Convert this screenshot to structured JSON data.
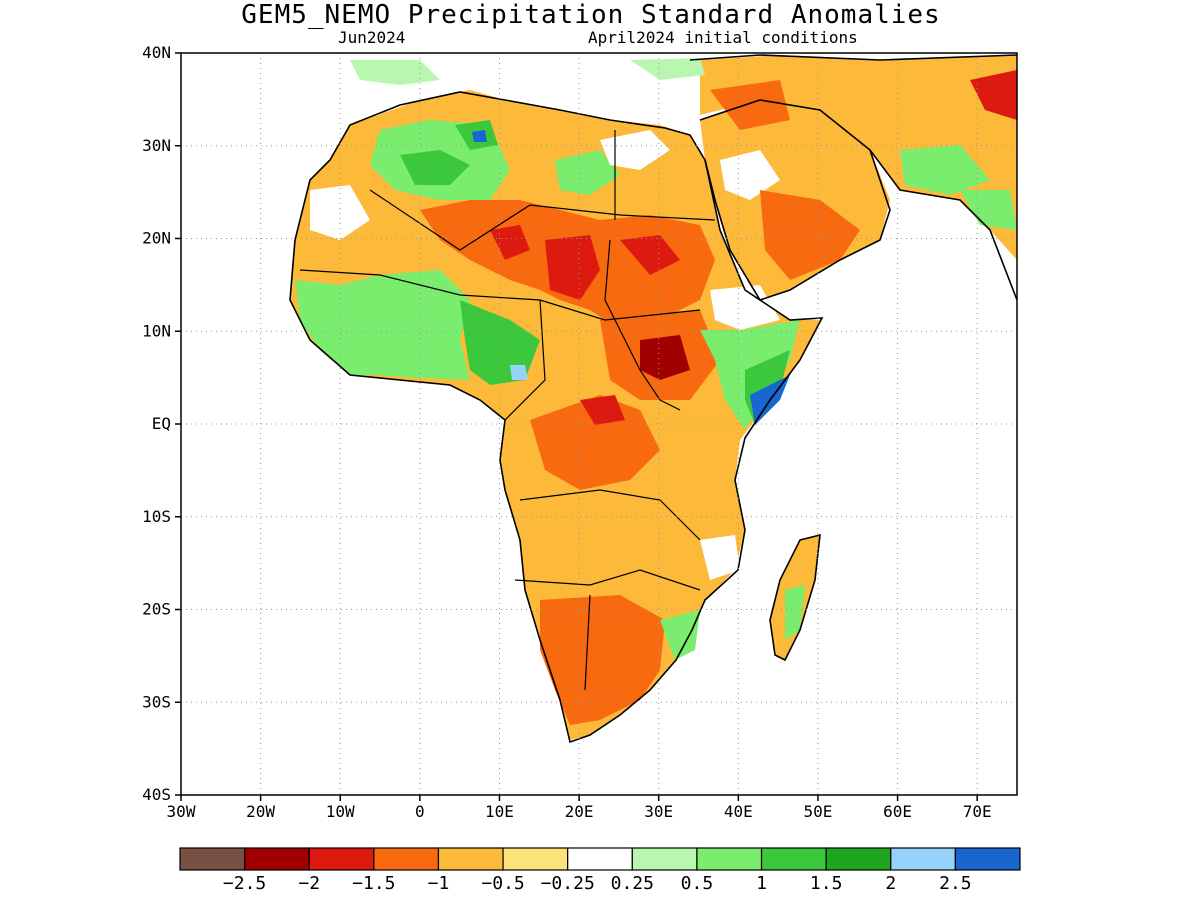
{
  "title": "GEM5_NEMO Precipitation Standard Anomalies",
  "subtitle_left": "Jun2024",
  "subtitle_right": "April2024 initial conditions",
  "axes": {
    "lon_range": [
      -30,
      75
    ],
    "lat_range": [
      -40,
      40
    ],
    "x_ticks": [
      "30W",
      "20W",
      "10W",
      "0",
      "10E",
      "20E",
      "30E",
      "40E",
      "50E",
      "60E",
      "70E"
    ],
    "y_ticks": [
      "40N",
      "30N",
      "20N",
      "10N",
      "EQ",
      "10S",
      "20S",
      "30S",
      "40S"
    ],
    "grid": "dotted"
  },
  "colorbar": {
    "colors": [
      "#7a5045",
      "#a00000",
      "#dd1a10",
      "#f86a10",
      "#fdb93a",
      "#fde27a",
      "#ffffff",
      "#b9f7b0",
      "#7aed6e",
      "#3cc83c",
      "#1ea41e",
      "#96d2fa",
      "#1866d0"
    ],
    "labels": [
      "−2.5",
      "−2",
      "−1.5",
      "−1",
      "−0.5",
      "−0.25",
      "0.25",
      "0.5",
      "1",
      "1.5",
      "2",
      "2.5"
    ]
  }
}
